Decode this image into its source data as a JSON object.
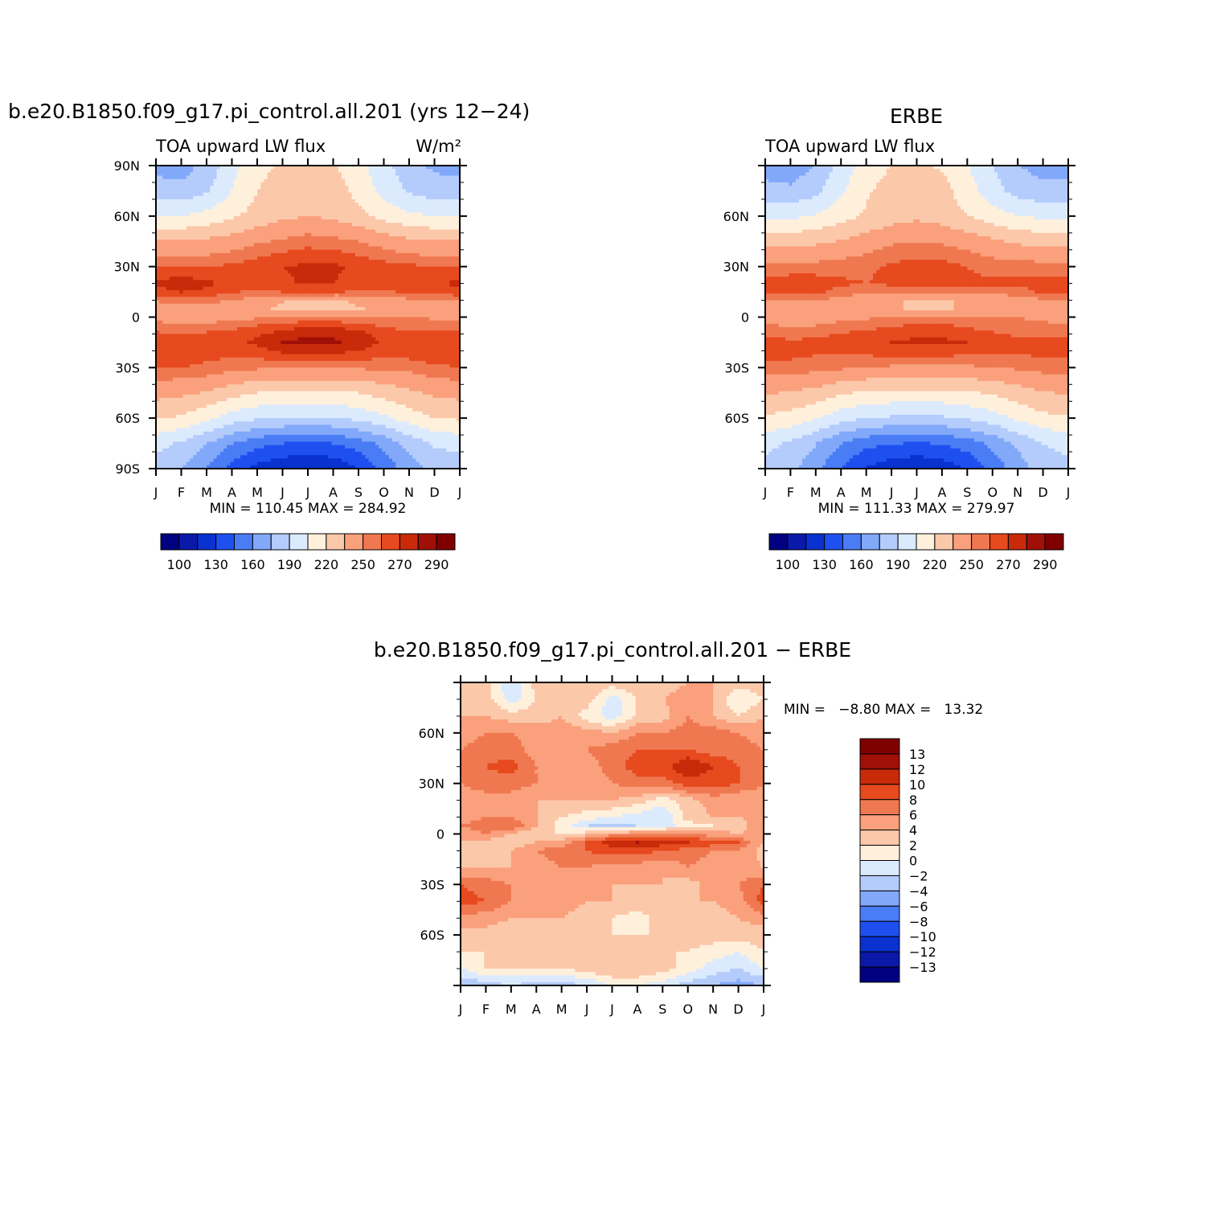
{
  "colors": {
    "palette": [
      "#000080",
      "#0a19a8",
      "#0a32d0",
      "#1e50f0",
      "#4a7cf5",
      "#82a8fa",
      "#b4ccfc",
      "#dceafe",
      "#fff0dc",
      "#fcc8aa",
      "#faa07c",
      "#f07850",
      "#e64a1e",
      "#c82a0a",
      "#a01008",
      "#800000"
    ]
  },
  "panels": {
    "model": {
      "title": "b.e20.B1850.f09_g17.pi_control.all.201 (yrs 12−24)",
      "left_label": "TOA upward LW flux",
      "units": "W/m²",
      "minmax": "MIN = 110.45 MAX = 284.92"
    },
    "obs": {
      "title": "ERBE",
      "left_label": "TOA upward LW flux",
      "minmax": "MIN = 111.33 MAX = 279.97"
    },
    "diff": {
      "title": "b.e20.B1850.f09_g17.pi_control.all.201 − ERBE",
      "minmax": "MIN =   −8.80 MAX =   13.32"
    }
  },
  "axes": {
    "months": [
      "J",
      "F",
      "M",
      "A",
      "M",
      "J",
      "J",
      "A",
      "S",
      "O",
      "N",
      "D",
      "J"
    ],
    "lat_full": [
      "90N",
      "60N",
      "30N",
      "0",
      "30S",
      "60S",
      "90S"
    ],
    "lat_short": [
      "60N",
      "30N",
      "0",
      "30S",
      "60S"
    ]
  },
  "colorbars": {
    "abs_labels": [
      "100",
      "130",
      "160",
      "190",
      "220",
      "250",
      "270",
      "290"
    ],
    "diff_labels": [
      "13",
      "12",
      "10",
      "8",
      "6",
      "4",
      "2",
      "0",
      "−2",
      "−4",
      "−6",
      "−8",
      "−10",
      "−12",
      "−13"
    ]
  },
  "chart_data": [
    {
      "type": "heatmap",
      "title": "b.e20.B1850.f09_g17.pi_control.all.201 (yrs 12−24)",
      "subtitle_left": "TOA upward LW flux",
      "subtitle_right": "W/m²",
      "x_ticks": [
        "J",
        "F",
        "M",
        "A",
        "M",
        "J",
        "J",
        "A",
        "S",
        "O",
        "N",
        "D",
        "J"
      ],
      "y_ticks": [
        "90N",
        "60N",
        "30N",
        "0",
        "30S",
        "60S",
        "90S"
      ],
      "ylim": [
        -90,
        90
      ],
      "levels": [
        100,
        115,
        130,
        145,
        160,
        175,
        190,
        205,
        220,
        235,
        250,
        260,
        270,
        280,
        290
      ],
      "min": 110.45,
      "max": 284.92,
      "lat": [
        90,
        75,
        60,
        45,
        30,
        20,
        15,
        10,
        5,
        0,
        -5,
        -10,
        -15,
        -20,
        -30,
        -45,
        -60,
        -75,
        -90
      ],
      "values": [
        [
          170,
          168,
          180,
          200,
          215,
          222,
          225,
          222,
          210,
          195,
          180,
          172,
          170
        ],
        [
          182,
          180,
          188,
          205,
          220,
          228,
          230,
          228,
          215,
          200,
          188,
          182,
          182
        ],
        [
          205,
          205,
          210,
          218,
          225,
          232,
          235,
          232,
          225,
          215,
          208,
          205,
          205
        ],
        [
          235,
          236,
          238,
          242,
          248,
          252,
          256,
          254,
          250,
          244,
          238,
          236,
          235
        ],
        [
          260,
          260,
          260,
          262,
          266,
          270,
          272,
          272,
          268,
          264,
          262,
          260,
          260
        ],
        [
          272,
          276,
          272,
          268,
          266,
          268,
          272,
          270,
          266,
          266,
          268,
          270,
          272
        ],
        [
          266,
          270,
          268,
          262,
          256,
          260,
          262,
          262,
          258,
          258,
          262,
          264,
          266
        ],
        [
          252,
          254,
          254,
          250,
          244,
          236,
          232,
          232,
          238,
          244,
          248,
          250,
          252
        ],
        [
          240,
          242,
          244,
          242,
          238,
          232,
          228,
          230,
          234,
          238,
          240,
          240,
          240
        ],
        [
          246,
          244,
          244,
          246,
          248,
          250,
          250,
          250,
          250,
          250,
          250,
          248,
          246
        ],
        [
          254,
          250,
          252,
          256,
          260,
          264,
          268,
          268,
          264,
          258,
          256,
          256,
          254
        ],
        [
          262,
          260,
          262,
          264,
          268,
          274,
          278,
          278,
          274,
          266,
          262,
          262,
          262
        ],
        [
          266,
          264,
          264,
          266,
          272,
          280,
          284,
          282,
          276,
          268,
          264,
          264,
          266
        ],
        [
          268,
          266,
          264,
          264,
          266,
          272,
          274,
          274,
          270,
          266,
          266,
          268,
          268
        ],
        [
          260,
          260,
          258,
          254,
          252,
          252,
          252,
          252,
          252,
          252,
          254,
          258,
          260
        ],
        [
          240,
          238,
          234,
          226,
          220,
          218,
          218,
          218,
          220,
          226,
          232,
          238,
          240
        ],
        [
          222,
          218,
          208,
          198,
          192,
          190,
          188,
          190,
          194,
          202,
          212,
          220,
          222
        ],
        [
          195,
          188,
          176,
          160,
          150,
          145,
          142,
          145,
          152,
          165,
          180,
          192,
          195
        ],
        [
          182,
          175,
          160,
          140,
          125,
          118,
          115,
          118,
          130,
          150,
          168,
          180,
          182
        ]
      ]
    },
    {
      "type": "heatmap",
      "title": "ERBE",
      "subtitle_left": "TOA upward LW flux",
      "x_ticks": [
        "J",
        "F",
        "M",
        "A",
        "M",
        "J",
        "J",
        "A",
        "S",
        "O",
        "N",
        "D",
        "J"
      ],
      "y_ticks": [
        "60N",
        "30N",
        "0",
        "30S",
        "60S"
      ],
      "levels": [
        100,
        115,
        130,
        145,
        160,
        175,
        190,
        205,
        220,
        235,
        250,
        260,
        270,
        280,
        290
      ],
      "min": 111.33,
      "max": 279.97,
      "lat": [
        90,
        75,
        60,
        45,
        30,
        20,
        15,
        10,
        5,
        0,
        -5,
        -10,
        -15,
        -20,
        -30,
        -45,
        -60,
        -75,
        -90
      ],
      "values": [
        [
          168,
          166,
          176,
          196,
          212,
          220,
          222,
          218,
          206,
          190,
          176,
          168,
          168
        ],
        [
          180,
          178,
          186,
          202,
          218,
          226,
          228,
          226,
          212,
          196,
          184,
          180,
          180
        ],
        [
          202,
          202,
          206,
          214,
          222,
          228,
          232,
          228,
          220,
          212,
          205,
          202,
          202
        ],
        [
          230,
          230,
          232,
          236,
          242,
          248,
          250,
          248,
          244,
          238,
          232,
          230,
          230
        ],
        [
          254,
          254,
          254,
          256,
          258,
          262,
          264,
          264,
          260,
          256,
          256,
          254,
          254
        ],
        [
          264,
          266,
          266,
          262,
          260,
          262,
          264,
          264,
          262,
          262,
          262,
          264,
          264
        ],
        [
          262,
          264,
          262,
          256,
          252,
          254,
          256,
          256,
          254,
          254,
          256,
          262,
          262
        ],
        [
          250,
          250,
          250,
          246,
          240,
          236,
          234,
          234,
          236,
          240,
          244,
          248,
          250
        ],
        [
          242,
          242,
          244,
          242,
          238,
          236,
          234,
          234,
          236,
          238,
          240,
          240,
          242
        ],
        [
          244,
          242,
          244,
          246,
          248,
          250,
          250,
          250,
          250,
          250,
          250,
          248,
          244
        ],
        [
          252,
          248,
          250,
          254,
          256,
          258,
          262,
          262,
          258,
          254,
          252,
          252,
          252
        ],
        [
          258,
          256,
          258,
          260,
          264,
          266,
          268,
          268,
          266,
          262,
          258,
          258,
          258
        ],
        [
          264,
          262,
          262,
          264,
          266,
          270,
          272,
          272,
          270,
          264,
          262,
          262,
          264
        ],
        [
          264,
          264,
          262,
          262,
          264,
          266,
          266,
          266,
          264,
          262,
          262,
          264,
          264
        ],
        [
          256,
          256,
          254,
          252,
          250,
          248,
          248,
          248,
          248,
          250,
          252,
          254,
          256
        ],
        [
          236,
          234,
          230,
          222,
          218,
          216,
          216,
          216,
          218,
          222,
          228,
          234,
          236
        ],
        [
          218,
          214,
          206,
          196,
          190,
          188,
          186,
          188,
          192,
          198,
          208,
          216,
          218
        ],
        [
          194,
          188,
          176,
          160,
          150,
          146,
          144,
          146,
          152,
          164,
          178,
          190,
          194
        ],
        [
          186,
          180,
          164,
          144,
          128,
          120,
          116,
          120,
          132,
          150,
          168,
          182,
          186
        ]
      ]
    },
    {
      "type": "heatmap",
      "title": "b.e20.B1850.f09_g17.pi_control.all.201 − ERBE",
      "x_ticks": [
        "J",
        "F",
        "M",
        "A",
        "M",
        "J",
        "J",
        "A",
        "S",
        "O",
        "N",
        "D",
        "J"
      ],
      "y_ticks": [
        "60N",
        "30N",
        "0",
        "30S",
        "60S"
      ],
      "levels": [
        -13,
        -12,
        -10,
        -8,
        -6,
        -4,
        -2,
        0,
        2,
        4,
        6,
        8,
        10,
        12,
        13
      ],
      "min": -8.8,
      "max": 13.32,
      "lat": [
        90,
        80,
        70,
        60,
        50,
        40,
        30,
        20,
        10,
        5,
        0,
        -5,
        -10,
        -20,
        -30,
        -40,
        -50,
        -60,
        -70,
        -80,
        -90
      ],
      "values": [
        [
          3,
          3,
          -2,
          3,
          4,
          4,
          3,
          4,
          3,
          4,
          4,
          3,
          3
        ],
        [
          2,
          3,
          -1,
          2,
          3,
          3,
          -1,
          2,
          4,
          5,
          4,
          0,
          2
        ],
        [
          4,
          4,
          3,
          3,
          4,
          1,
          -1,
          2,
          3,
          6,
          4,
          2,
          4
        ],
        [
          5,
          6,
          6,
          5,
          5,
          5,
          4,
          6,
          6,
          7,
          7,
          6,
          5
        ],
        [
          6,
          7,
          7,
          5,
          4,
          6,
          7,
          8,
          8,
          8,
          7,
          7,
          6
        ],
        [
          6,
          8,
          9,
          6,
          4,
          5,
          7,
          9,
          9,
          12,
          10,
          8,
          6
        ],
        [
          6,
          7,
          7,
          6,
          4,
          4,
          6,
          7,
          7,
          9,
          9,
          8,
          6
        ],
        [
          5,
          5,
          5,
          4,
          4,
          4,
          4,
          3,
          1,
          3,
          5,
          4,
          5
        ],
        [
          5,
          6,
          6,
          4,
          2,
          1,
          0,
          -1,
          -2,
          3,
          4,
          4,
          5
        ],
        [
          6,
          7,
          8,
          4,
          1,
          -2,
          -3,
          -2,
          -1,
          1,
          2,
          3,
          6
        ],
        [
          5,
          6,
          4,
          2,
          2,
          3,
          5,
          6,
          6,
          6,
          5,
          4,
          5
        ],
        [
          4,
          3,
          2,
          4,
          5,
          8,
          11,
          12,
          11,
          10,
          9,
          8,
          4
        ],
        [
          3,
          2,
          4,
          6,
          7,
          8,
          9,
          9,
          8,
          7,
          6,
          6,
          3
        ],
        [
          4,
          4,
          4,
          5,
          6,
          6,
          5,
          5,
          4,
          6,
          5,
          5,
          4
        ],
        [
          8,
          7,
          6,
          6,
          5,
          5,
          4,
          4,
          4,
          3,
          5,
          6,
          8
        ],
        [
          9,
          8,
          6,
          5,
          5,
          4,
          4,
          3,
          4,
          4,
          4,
          5,
          9
        ],
        [
          5,
          5,
          4,
          4,
          4,
          3,
          2,
          1,
          3,
          3,
          3,
          4,
          5
        ],
        [
          3,
          3,
          2,
          2,
          3,
          3,
          2,
          2,
          2,
          3,
          3,
          3,
          3
        ],
        [
          2,
          2,
          2,
          2,
          2,
          2,
          2,
          3,
          2,
          2,
          1,
          0,
          2
        ],
        [
          0,
          2,
          2,
          2,
          2,
          3,
          4,
          4,
          3,
          1,
          -1,
          -2,
          0
        ],
        [
          -4,
          -3,
          -2,
          -3,
          -3,
          -2,
          0,
          0,
          -1,
          -3,
          -4,
          -5,
          -4
        ]
      ]
    }
  ]
}
